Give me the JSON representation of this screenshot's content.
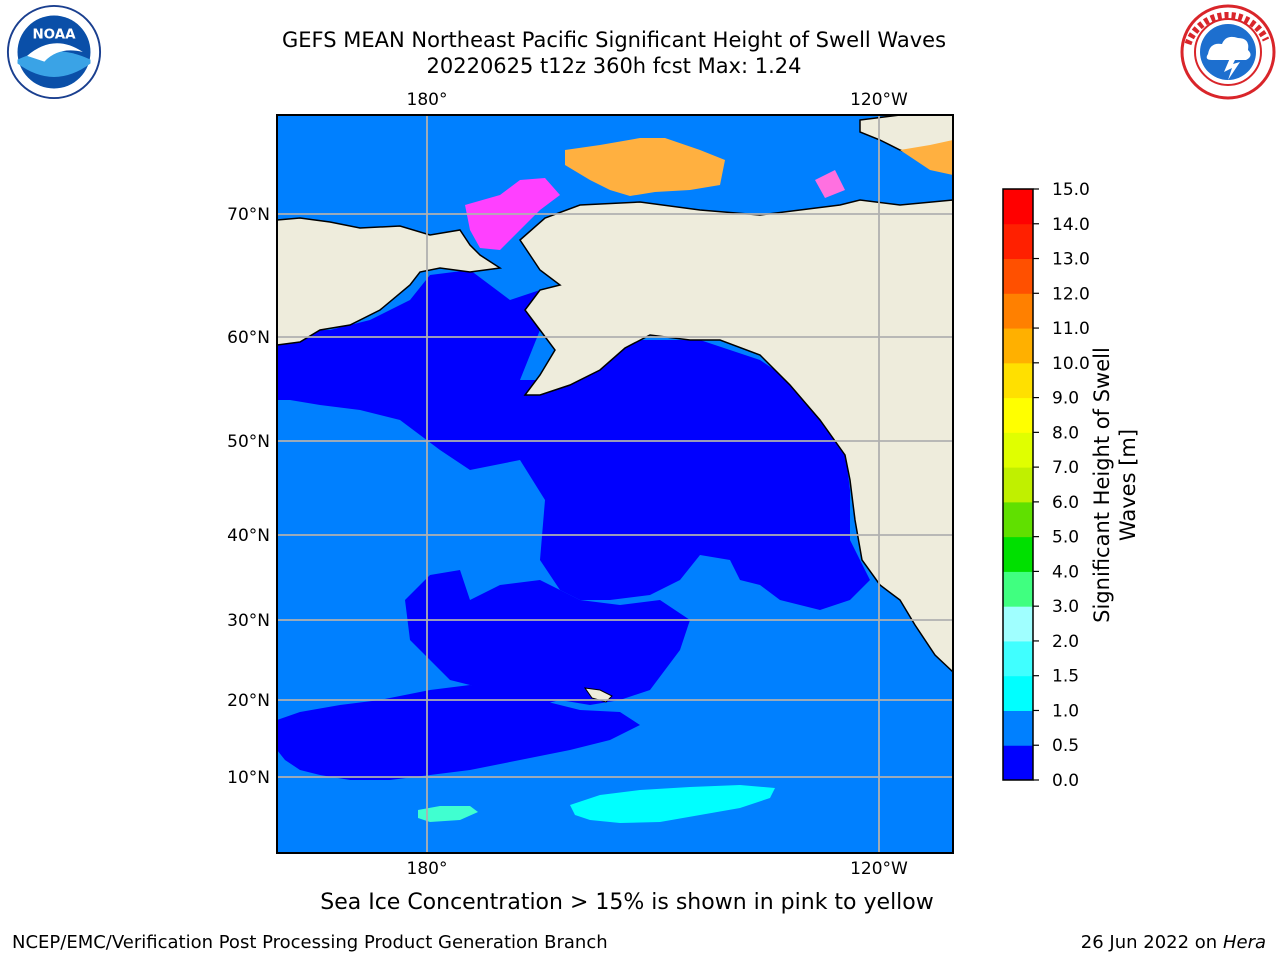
{
  "header": {
    "title_line1": "GEFS MEAN Northeast Pacific Significant Height of Swell Waves",
    "title_line2": "20220625 t12z 360h fcst   Max: 1.24"
  },
  "logos": {
    "left": "NOAA logo",
    "left_text": "NOAA",
    "right": "National Weather Service logo"
  },
  "map": {
    "top_ticks": [
      "180°",
      "120°W"
    ],
    "bottom_ticks": [
      "180°",
      "120°W"
    ],
    "lat_ticks": [
      "70°N",
      "60°N",
      "50°N",
      "40°N",
      "30°N",
      "20°N",
      "10°N"
    ],
    "colors": {
      "ocean_low": "#0000ff",
      "ocean_mid": "#0080ff",
      "land": "#eeecdc",
      "ice_pink": "#ff40ff",
      "ice_orange": "#ffb040",
      "swell_cyan": "#00ffff",
      "grid": "#b0b0b0"
    }
  },
  "colorbar": {
    "title_line1": "Significant Height of Swell",
    "title_line2": "Waves [m]",
    "levels": [
      "0.0",
      "0.5",
      "1.0",
      "1.5",
      "2.0",
      "3.0",
      "4.0",
      "5.0",
      "6.0",
      "7.0",
      "8.0",
      "9.0",
      "10.0",
      "11.0",
      "12.0",
      "13.0",
      "14.0",
      "15.0"
    ],
    "colors": [
      "#0000ff",
      "#0080ff",
      "#00ffff",
      "#40ffff",
      "#a0ffff",
      "#40ff80",
      "#00e000",
      "#60e000",
      "#c0f000",
      "#e0ff00",
      "#ffff00",
      "#ffe000",
      "#ffb000",
      "#ff8000",
      "#ff5000",
      "#ff2000",
      "#ff0000"
    ]
  },
  "footer": {
    "note": "Sea Ice Concentration > 15% is shown in pink to yellow",
    "credit": "NCEP/EMC/Verification Post Processing Product Generation Branch",
    "date": "26 Jun 2022 on",
    "machine": "Hera"
  }
}
